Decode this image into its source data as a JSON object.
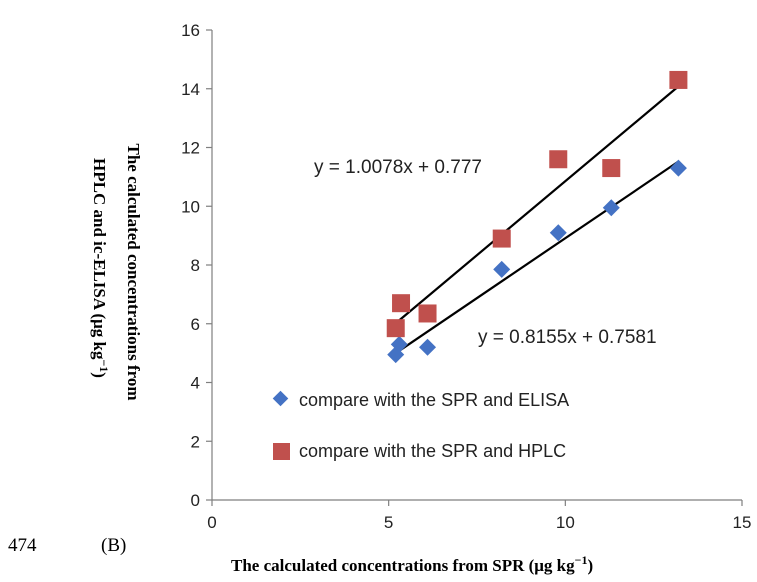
{
  "page": {
    "line_number": "474",
    "panel_label": "(B)"
  },
  "chart_data": {
    "type": "scatter",
    "xlabel_main": "The calculated concentrations from SPR (μg kg",
    "xlabel_sup": "−1",
    "xlabel_end": ")",
    "ylabel_line1": "The calculated concentrations from",
    "ylabel_line2_main": "HPLC and ic-ELISA (μg kg",
    "ylabel_line2_sup": "−1",
    "ylabel_line2_end": ")",
    "xlim": [
      0,
      15
    ],
    "ylim": [
      0,
      16
    ],
    "x_ticks": [
      "0",
      "5",
      "10",
      "15"
    ],
    "y_ticks": [
      "0",
      "2",
      "4",
      "6",
      "8",
      "10",
      "12",
      "14",
      "16"
    ],
    "grid": false,
    "legend_position": "lower-right",
    "series": [
      {
        "name": "compare with the SPR and ELISA",
        "marker": "diamond",
        "color": "#4472C4",
        "x": [
          5.2,
          5.3,
          6.1,
          8.2,
          9.8,
          11.3,
          13.2
        ],
        "y": [
          4.95,
          5.3,
          5.2,
          7.85,
          9.1,
          9.95,
          11.3
        ],
        "trendline": {
          "slope": 0.8155,
          "intercept": 0.7581,
          "equation": "y = 0.8155x + 0.7581"
        }
      },
      {
        "name": "compare with the SPR and HPLC",
        "marker": "square",
        "color": "#C0504D",
        "x": [
          5.2,
          5.35,
          6.1,
          8.2,
          9.8,
          11.3,
          13.2
        ],
        "y": [
          5.85,
          6.7,
          6.35,
          8.9,
          11.6,
          11.3,
          14.3
        ],
        "trendline": {
          "slope": 1.0078,
          "intercept": 0.777,
          "equation": "y = 1.0078x + 0.777"
        }
      }
    ],
    "trendline_color": "#000000"
  }
}
